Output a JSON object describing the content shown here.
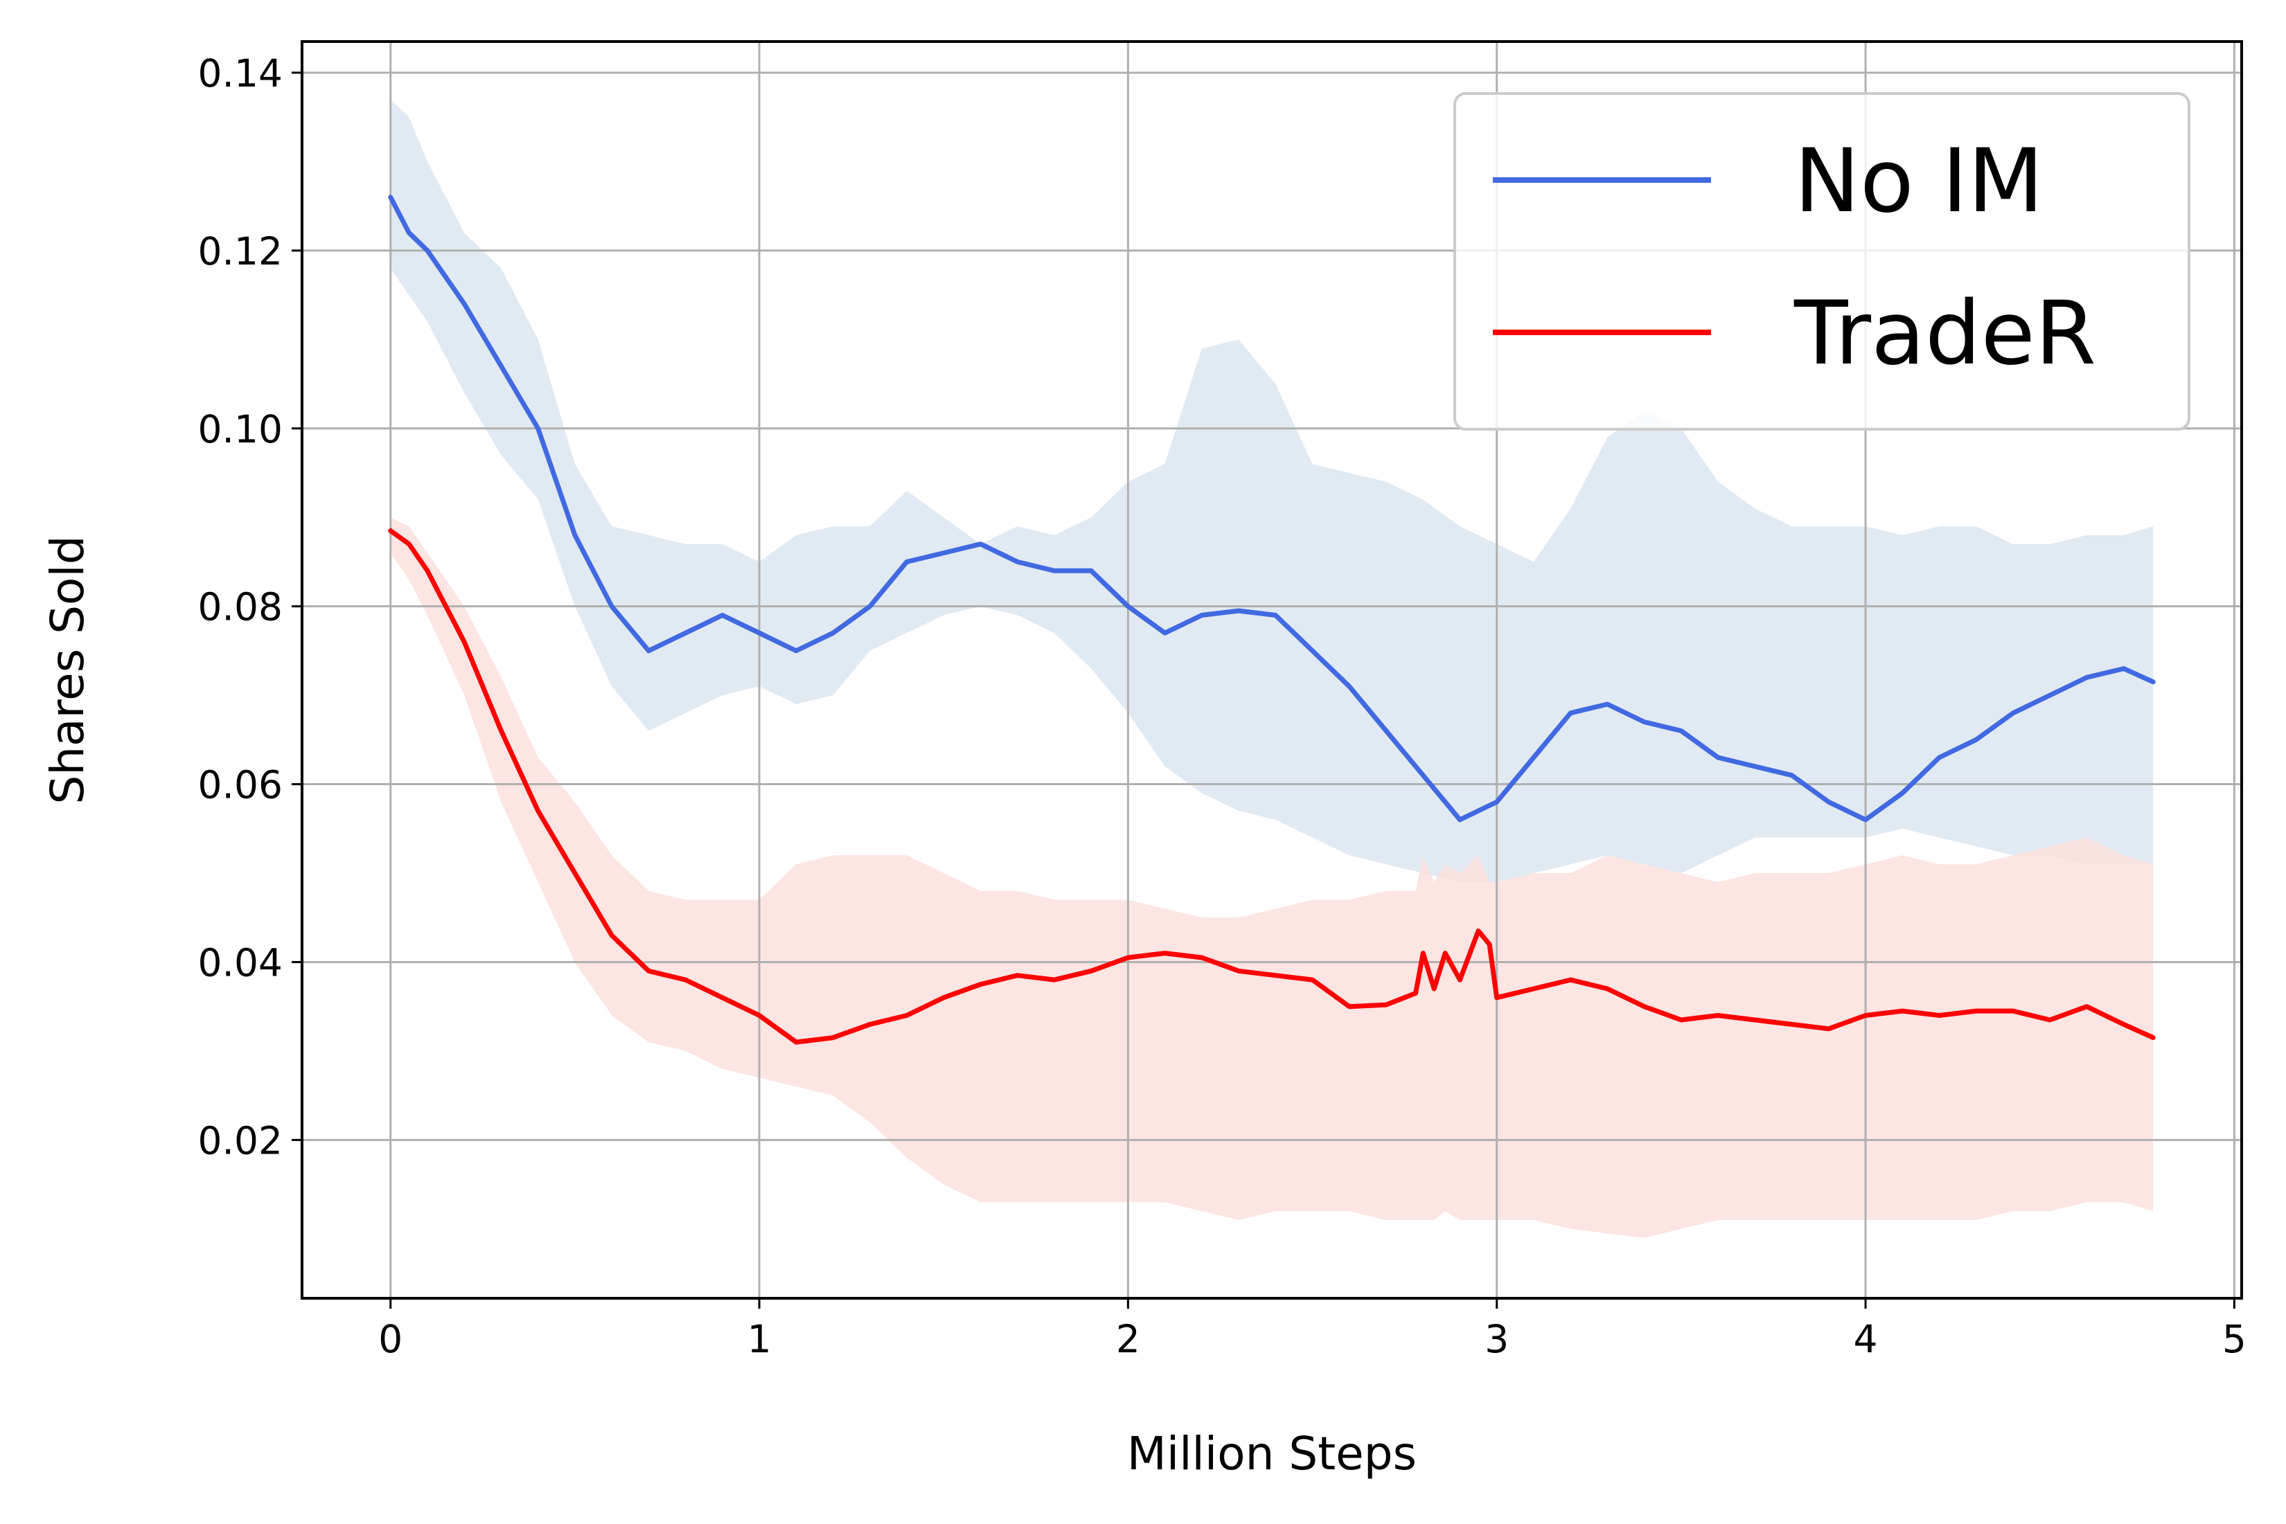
{
  "chart_data": {
    "type": "line",
    "xlabel": "Million Steps",
    "ylabel": "Shares Sold",
    "xlim": [
      -0.24,
      5.02
    ],
    "ylim": [
      0.0022,
      0.1435
    ],
    "xticks": [
      0,
      1,
      2,
      3,
      4,
      5
    ],
    "xtick_labels": [
      "0",
      "1",
      "2",
      "3",
      "4",
      "5"
    ],
    "yticks": [
      0.02,
      0.04,
      0.06,
      0.08,
      0.1,
      0.12,
      0.14
    ],
    "ytick_labels": [
      "0.02",
      "0.04",
      "0.06",
      "0.08",
      "0.10",
      "0.12",
      "0.14"
    ],
    "grid": true,
    "legend_position": "top-right",
    "series": [
      {
        "name": "No IM",
        "color": "#4169e1",
        "band_color": "#dce6f0",
        "x": [
          0,
          0.05,
          0.1,
          0.2,
          0.3,
          0.4,
          0.5,
          0.6,
          0.7,
          0.8,
          0.9,
          1.0,
          1.1,
          1.2,
          1.3,
          1.4,
          1.5,
          1.6,
          1.7,
          1.8,
          1.9,
          2.0,
          2.1,
          2.2,
          2.3,
          2.4,
          2.5,
          2.6,
          2.7,
          2.8,
          2.9,
          3.0,
          3.1,
          3.2,
          3.3,
          3.4,
          3.5,
          3.6,
          3.7,
          3.8,
          3.9,
          4.0,
          4.1,
          4.2,
          4.3,
          4.4,
          4.5,
          4.6,
          4.7,
          4.78
        ],
        "y": [
          0.126,
          0.122,
          0.12,
          0.114,
          0.107,
          0.1,
          0.088,
          0.08,
          0.075,
          0.077,
          0.079,
          0.077,
          0.075,
          0.077,
          0.08,
          0.085,
          0.086,
          0.087,
          0.085,
          0.084,
          0.084,
          0.08,
          0.077,
          0.079,
          0.0795,
          0.079,
          0.075,
          0.071,
          0.066,
          0.061,
          0.056,
          0.058,
          0.063,
          0.068,
          0.069,
          0.067,
          0.066,
          0.063,
          0.062,
          0.061,
          0.058,
          0.056,
          0.059,
          0.063,
          0.065,
          0.068,
          0.07,
          0.072,
          0.073,
          0.0715
        ],
        "upper": [
          0.137,
          0.135,
          0.13,
          0.122,
          0.118,
          0.11,
          0.096,
          0.089,
          0.088,
          0.087,
          0.087,
          0.085,
          0.088,
          0.089,
          0.089,
          0.093,
          0.09,
          0.087,
          0.089,
          0.088,
          0.09,
          0.094,
          0.096,
          0.109,
          0.11,
          0.105,
          0.096,
          0.095,
          0.094,
          0.092,
          0.089,
          0.087,
          0.085,
          0.091,
          0.099,
          0.102,
          0.1,
          0.094,
          0.091,
          0.089,
          0.089,
          0.089,
          0.088,
          0.089,
          0.089,
          0.087,
          0.087,
          0.088,
          0.088,
          0.089
        ],
        "lower": [
          0.118,
          0.115,
          0.112,
          0.104,
          0.097,
          0.092,
          0.08,
          0.071,
          0.066,
          0.068,
          0.07,
          0.071,
          0.069,
          0.07,
          0.075,
          0.077,
          0.079,
          0.08,
          0.079,
          0.077,
          0.073,
          0.068,
          0.062,
          0.059,
          0.057,
          0.056,
          0.054,
          0.052,
          0.051,
          0.05,
          0.049,
          0.049,
          0.05,
          0.051,
          0.052,
          0.051,
          0.05,
          0.052,
          0.054,
          0.054,
          0.054,
          0.054,
          0.055,
          0.054,
          0.053,
          0.052,
          0.052,
          0.051,
          0.051,
          0.051
        ]
      },
      {
        "name": "TradeR",
        "color": "#ff0000",
        "band_color": "#fce1dd",
        "x": [
          0,
          0.05,
          0.1,
          0.2,
          0.3,
          0.4,
          0.5,
          0.6,
          0.7,
          0.8,
          0.9,
          1.0,
          1.1,
          1.2,
          1.3,
          1.4,
          1.5,
          1.6,
          1.7,
          1.8,
          1.9,
          2.0,
          2.1,
          2.2,
          2.3,
          2.4,
          2.5,
          2.6,
          2.7,
          2.78,
          2.8,
          2.83,
          2.86,
          2.9,
          2.95,
          2.98,
          3.0,
          3.1,
          3.2,
          3.3,
          3.4,
          3.5,
          3.6,
          3.7,
          3.8,
          3.9,
          4.0,
          4.1,
          4.2,
          4.3,
          4.4,
          4.5,
          4.6,
          4.7,
          4.78
        ],
        "y": [
          0.0885,
          0.087,
          0.084,
          0.076,
          0.066,
          0.057,
          0.05,
          0.043,
          0.039,
          0.038,
          0.036,
          0.034,
          0.031,
          0.0315,
          0.033,
          0.034,
          0.036,
          0.0375,
          0.0385,
          0.038,
          0.039,
          0.0405,
          0.041,
          0.0405,
          0.039,
          0.0385,
          0.038,
          0.035,
          0.0352,
          0.0365,
          0.041,
          0.037,
          0.041,
          0.038,
          0.0435,
          0.042,
          0.036,
          0.037,
          0.038,
          0.037,
          0.035,
          0.0335,
          0.034,
          0.0335,
          0.033,
          0.0325,
          0.034,
          0.0345,
          0.034,
          0.0345,
          0.0345,
          0.0335,
          0.035,
          0.033,
          0.0315
        ],
        "upper": [
          0.09,
          0.089,
          0.086,
          0.08,
          0.072,
          0.063,
          0.058,
          0.052,
          0.048,
          0.047,
          0.047,
          0.047,
          0.051,
          0.052,
          0.052,
          0.052,
          0.05,
          0.048,
          0.048,
          0.047,
          0.047,
          0.047,
          0.046,
          0.045,
          0.045,
          0.046,
          0.047,
          0.047,
          0.048,
          0.048,
          0.052,
          0.049,
          0.051,
          0.05,
          0.052,
          0.049,
          0.049,
          0.05,
          0.05,
          0.052,
          0.051,
          0.05,
          0.049,
          0.05,
          0.05,
          0.05,
          0.051,
          0.052,
          0.051,
          0.051,
          0.052,
          0.053,
          0.054,
          0.052,
          0.051
        ],
        "lower": [
          0.086,
          0.083,
          0.079,
          0.07,
          0.058,
          0.049,
          0.04,
          0.034,
          0.031,
          0.03,
          0.028,
          0.027,
          0.026,
          0.025,
          0.022,
          0.018,
          0.015,
          0.013,
          0.013,
          0.013,
          0.013,
          0.013,
          0.013,
          0.012,
          0.011,
          0.012,
          0.012,
          0.012,
          0.011,
          0.011,
          0.011,
          0.011,
          0.012,
          0.011,
          0.011,
          0.011,
          0.011,
          0.011,
          0.01,
          0.0095,
          0.009,
          0.01,
          0.011,
          0.011,
          0.011,
          0.011,
          0.011,
          0.011,
          0.011,
          0.011,
          0.012,
          0.012,
          0.013,
          0.013,
          0.012
        ]
      }
    ]
  }
}
